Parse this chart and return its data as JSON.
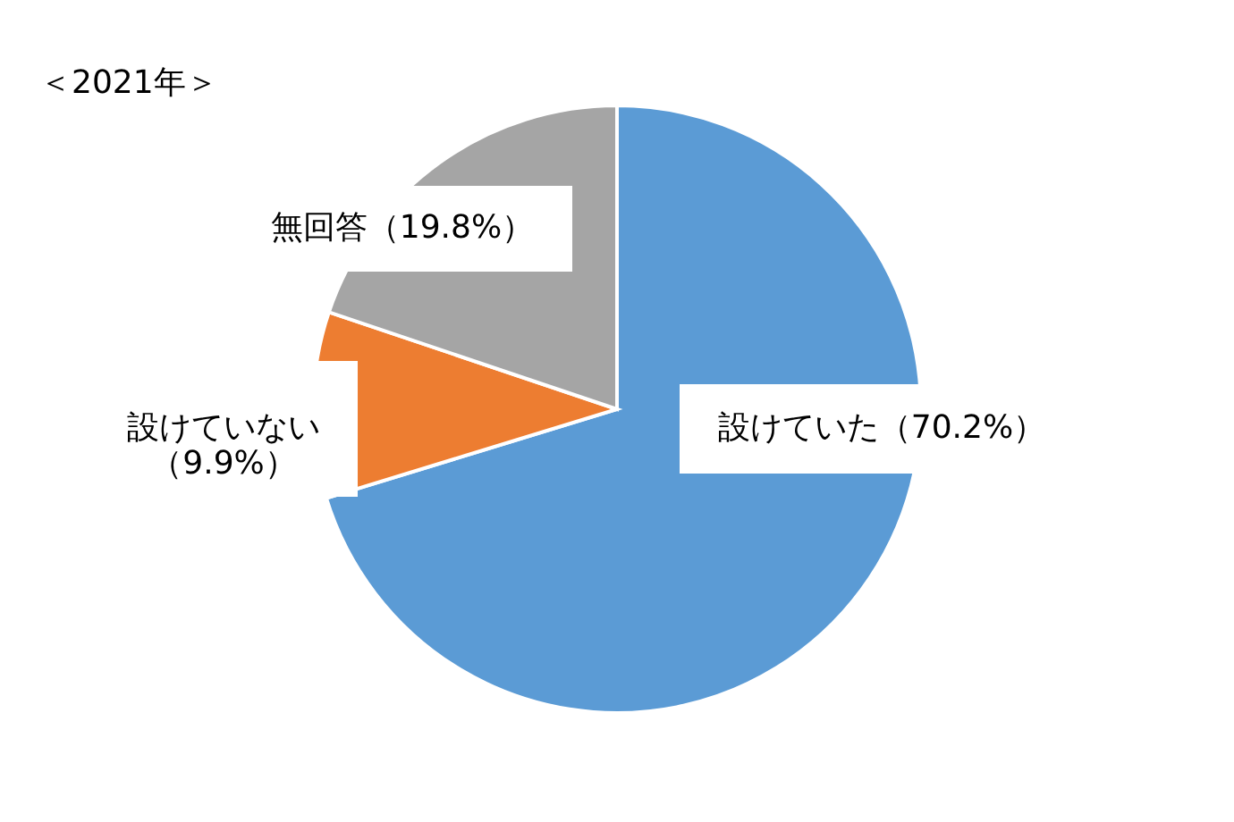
{
  "chart_data": {
    "type": "pie",
    "title": "＜2021年＞",
    "categories": [
      "設けていた",
      "設けていない",
      "無回答"
    ],
    "values": [
      70.2,
      9.9,
      19.8
    ],
    "value_labels": [
      "（70.2%）",
      "（9.9%）",
      "（19.8%）"
    ],
    "colors": [
      "#5b9bd5",
      "#ed7d31",
      "#a5a5a5"
    ]
  }
}
